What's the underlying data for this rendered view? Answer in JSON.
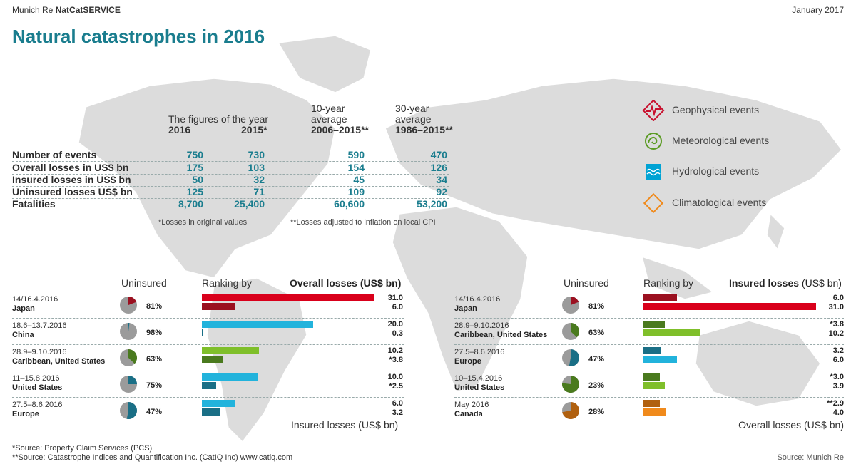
{
  "header": {
    "brand_normal": "Munich Re ",
    "brand_bold": "NatCatSERVICE",
    "date": "January 2017"
  },
  "title": "Natural catastrophes in 2016",
  "summary": {
    "col_headers": [
      {
        "line1": "",
        "line2": "The figures of the year",
        "line3": "2016"
      },
      {
        "line1": "",
        "line2": "",
        "line3": "2015*"
      },
      {
        "line1": "10-year",
        "line2": "average",
        "line3": "2006–2015**"
      },
      {
        "line1": "30-year",
        "line2": "average",
        "line3": "1986–2015**"
      }
    ],
    "rows": [
      {
        "label": "Number of events",
        "values": [
          "750",
          "730",
          "590",
          "470"
        ]
      },
      {
        "label": "Overall losses in US$ bn",
        "values": [
          "175",
          "103",
          "154",
          "126"
        ]
      },
      {
        "label": "Insured losses in US$ bn",
        "values": [
          "50",
          "32",
          "45",
          "34"
        ]
      },
      {
        "label": "Uninsured losses US$ bn",
        "values": [
          "125",
          "71",
          "109",
          "92"
        ]
      },
      {
        "label": "Fatalities",
        "values": [
          "8,700",
          "25,400",
          "60,600",
          "53,200"
        ]
      }
    ],
    "note1": "*Losses in original values",
    "note2": "**Losses adjusted to inflation on local CPI"
  },
  "legend": [
    {
      "label": "Geophysical events",
      "icon": "geophysical-icon",
      "color": "#c8102e"
    },
    {
      "label": "Meteorological events",
      "icon": "meteorological-icon",
      "color": "#5b9b24"
    },
    {
      "label": "Hydrological events",
      "icon": "hydrological-icon",
      "color": "#00a3d4"
    },
    {
      "label": "Climatological events",
      "icon": "climatological-icon",
      "color": "#f08a1c"
    }
  ],
  "colors": {
    "geophysical_light": "#d9001b",
    "geophysical_dark": "#9b1020",
    "meteorological_light": "#7fbf2a",
    "meteorological_dark": "#4a7a1e",
    "hydrological_light": "#22b3dc",
    "hydrological_dark": "#1a6f86",
    "climatological_light": "#f08a1c",
    "climatological_dark": "#b0600f",
    "pie_grey": "#9b9b9b",
    "teal": "#1a7d8e"
  },
  "chart_data": [
    {
      "type": "bar",
      "title": "Overall losses (US$ bn)",
      "title_prefix": "Ranking by",
      "uninsured_header": "Uninsured",
      "footer": "Insured losses (US$ bn)",
      "events": [
        {
          "date": "14/16.4.2016",
          "place": "Japan",
          "category": "geophysical",
          "uninsured_pct": "81%",
          "uninsured": 81,
          "primary_label": "31.0",
          "primary": 31.0,
          "secondary_label": "6.0",
          "secondary": 6.0
        },
        {
          "date": "18.6–13.7.2016",
          "place": "China",
          "category": "hydrological",
          "uninsured_pct": "98%",
          "uninsured": 98,
          "primary_label": "20.0",
          "primary": 20.0,
          "secondary_label": "0.3",
          "secondary": 0.3
        },
        {
          "date": "28.9–9.10.2016",
          "place": "Caribbean, United States",
          "category": "meteorological",
          "uninsured_pct": "63%",
          "uninsured": 63,
          "primary_label": "10.2",
          "primary": 10.2,
          "secondary_label": "*3.8",
          "secondary": 3.8
        },
        {
          "date": "11–15.8.2016",
          "place": "United States",
          "category": "hydrological",
          "uninsured_pct": "75%",
          "uninsured": 75,
          "primary_label": "10.0",
          "primary": 10.0,
          "secondary_label": "*2.5",
          "secondary": 2.5
        },
        {
          "date": "27.5–8.6.2016",
          "place": "Europe",
          "category": "hydrological",
          "uninsured_pct": "47%",
          "uninsured": 47,
          "primary_label": "6.0",
          "primary": 6.0,
          "secondary_label": "3.2",
          "secondary": 3.2
        }
      ]
    },
    {
      "type": "bar",
      "title": "Insured losses",
      "title_unit": " (US$ bn)",
      "title_prefix": "Ranking by",
      "uninsured_header": "Uninsured",
      "footer": "Overall losses (US$ bn)",
      "events": [
        {
          "date": "14/16.4.2016",
          "place": "Japan",
          "category": "geophysical",
          "uninsured_pct": "81%",
          "uninsured": 81,
          "primary_label": "6.0",
          "primary": 6.0,
          "secondary_label": "31.0",
          "secondary": 31.0
        },
        {
          "date": "28.9–9.10.2016",
          "place": "Caribbean, United States",
          "category": "meteorological",
          "uninsured_pct": "63%",
          "uninsured": 63,
          "primary_label": "*3.8",
          "primary": 3.8,
          "secondary_label": "10.2",
          "secondary": 10.2
        },
        {
          "date": "27.5–8.6.2016",
          "place": "Europe",
          "category": "hydrological",
          "uninsured_pct": "47%",
          "uninsured": 47,
          "primary_label": "3.2",
          "primary": 3.2,
          "secondary_label": "6.0",
          "secondary": 6.0
        },
        {
          "date": "10–15.4.2016",
          "place": "United States",
          "category": "meteorological",
          "uninsured_pct": "23%",
          "uninsured": 23,
          "primary_label": "*3.0",
          "primary": 3.0,
          "secondary_label": "3.9",
          "secondary": 3.9
        },
        {
          "date": "May 2016",
          "place": "Canada",
          "category": "climatological",
          "uninsured_pct": "28%",
          "uninsured": 28,
          "primary_label": "**2.9",
          "primary": 2.9,
          "secondary_label": "4.0",
          "secondary": 4.0
        }
      ]
    }
  ],
  "footer": {
    "source1": "*Source: Property Claim Services (PCS)",
    "source2": "**Source: Catastrophe Indices and Quantification Inc. (CatIQ Inc) www.catiq.com",
    "source_right": "Source: Munich Re"
  }
}
